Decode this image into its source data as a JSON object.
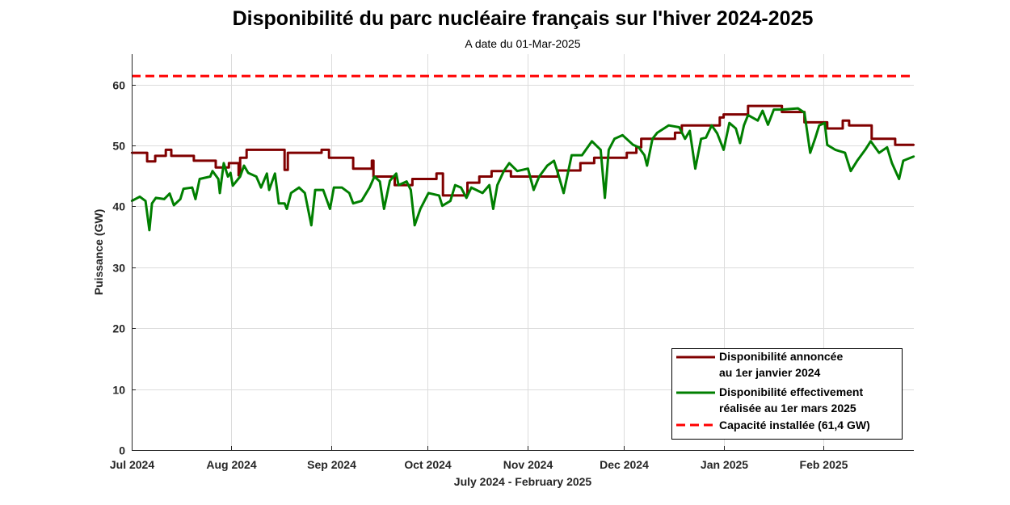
{
  "chart_data": {
    "type": "line",
    "title": "Disponibilité du parc nucléaire français sur l'hiver 2024-2025",
    "subtitle": "A date du 01-Mar-2025",
    "xlabel": "July 2024 - February 2025",
    "ylabel": "Puissance (GW)",
    "x_unit": "days since 01-Jul-2024",
    "xlim": [
      0,
      243
    ],
    "ylim": [
      0,
      65
    ],
    "grid": true,
    "legend_position": "bottom-right",
    "x_ticks": [
      {
        "day": 0,
        "label": "Jul 2024"
      },
      {
        "day": 31,
        "label": "Aug 2024"
      },
      {
        "day": 62,
        "label": "Sep 2024"
      },
      {
        "day": 92,
        "label": "Oct 2024"
      },
      {
        "day": 123,
        "label": "Nov 2024"
      },
      {
        "day": 153,
        "label": "Dec 2024"
      },
      {
        "day": 184,
        "label": "Jan 2025"
      },
      {
        "day": 215,
        "label": "Feb 2025"
      }
    ],
    "y_ticks": [
      0,
      10,
      20,
      30,
      40,
      50,
      60
    ],
    "series": [
      {
        "name": "announced",
        "legend": [
          "Disponibilité annoncée",
          "au 1er janvier 2024"
        ],
        "color": "#800000",
        "style": "step",
        "points": [
          [
            0,
            48.8
          ],
          [
            4.8,
            47.4
          ],
          [
            7.3,
            48.3
          ],
          [
            10.6,
            49.3
          ],
          [
            12.3,
            48.3
          ],
          [
            19.3,
            47.5
          ],
          [
            26.1,
            46.4
          ],
          [
            30.2,
            47.1
          ],
          [
            33.2,
            45.1
          ],
          [
            33.7,
            48.0
          ],
          [
            35.7,
            49.3
          ],
          [
            47.5,
            46.0
          ],
          [
            48.5,
            48.8
          ],
          [
            59.0,
            49.3
          ],
          [
            61.3,
            48.0
          ],
          [
            68.8,
            46.2
          ],
          [
            74.6,
            47.5
          ],
          [
            75.1,
            44.9
          ],
          [
            81.7,
            43.5
          ],
          [
            87.2,
            44.5
          ],
          [
            94.7,
            45.4
          ],
          [
            96.7,
            41.8
          ],
          [
            104.3,
            43.9
          ],
          [
            108.0,
            44.9
          ],
          [
            111.8,
            45.8
          ],
          [
            117.8,
            44.9
          ],
          [
            132.4,
            45.9
          ],
          [
            139.4,
            47.1
          ],
          [
            143.7,
            48.0
          ],
          [
            153.8,
            48.8
          ],
          [
            156.8,
            49.7
          ],
          [
            158.3,
            51.1
          ],
          [
            168.8,
            52.1
          ],
          [
            170.9,
            53.3
          ],
          [
            182.7,
            54.6
          ],
          [
            183.9,
            55.1
          ],
          [
            191.5,
            56.5
          ],
          [
            202.0,
            55.5
          ],
          [
            209.0,
            53.8
          ],
          [
            216.1,
            52.8
          ],
          [
            220.9,
            54.1
          ],
          [
            222.9,
            53.3
          ],
          [
            229.9,
            51.1
          ],
          [
            237.2,
            50.1
          ],
          [
            243,
            50.1
          ]
        ]
      },
      {
        "name": "realised",
        "legend": [
          "Disponibilité effectivement",
          "réalisée au 1er mars 2025"
        ],
        "color": "#007f00",
        "style": "line",
        "points": [
          [
            0,
            40.9
          ],
          [
            2.5,
            41.6
          ],
          [
            4.3,
            40.9
          ],
          [
            5.5,
            36.1
          ],
          [
            6.3,
            40.5
          ],
          [
            7.5,
            41.4
          ],
          [
            10.1,
            41.2
          ],
          [
            11.8,
            42.1
          ],
          [
            13.1,
            40.2
          ],
          [
            15.1,
            41.2
          ],
          [
            16.1,
            42.9
          ],
          [
            18.8,
            43.1
          ],
          [
            19.8,
            41.2
          ],
          [
            21.1,
            44.5
          ],
          [
            24.4,
            44.9
          ],
          [
            25.1,
            45.8
          ],
          [
            26.9,
            44.5
          ],
          [
            27.4,
            42.2
          ],
          [
            28.6,
            47.1
          ],
          [
            29.9,
            44.9
          ],
          [
            30.7,
            45.5
          ],
          [
            31.4,
            43.4
          ],
          [
            33.7,
            44.9
          ],
          [
            34.9,
            46.7
          ],
          [
            36.2,
            45.5
          ],
          [
            38.7,
            44.9
          ],
          [
            40.2,
            43.1
          ],
          [
            42.0,
            45.4
          ],
          [
            42.7,
            42.7
          ],
          [
            44.5,
            45.4
          ],
          [
            45.7,
            40.5
          ],
          [
            47.5,
            40.5
          ],
          [
            48.2,
            39.6
          ],
          [
            49.5,
            42.2
          ],
          [
            52.0,
            43.1
          ],
          [
            53.8,
            42.2
          ],
          [
            55.8,
            36.9
          ],
          [
            57.0,
            42.7
          ],
          [
            59.5,
            42.7
          ],
          [
            61.6,
            39.6
          ],
          [
            62.8,
            43.1
          ],
          [
            65.3,
            43.1
          ],
          [
            67.6,
            42.2
          ],
          [
            68.8,
            40.5
          ],
          [
            71.4,
            40.9
          ],
          [
            73.9,
            43.1
          ],
          [
            75.4,
            44.9
          ],
          [
            77.1,
            44.1
          ],
          [
            78.4,
            39.6
          ],
          [
            80.2,
            44.2
          ],
          [
            82.2,
            45.4
          ],
          [
            82.9,
            43.5
          ],
          [
            85.4,
            44.1
          ],
          [
            86.7,
            42.7
          ],
          [
            87.9,
            36.9
          ],
          [
            89.7,
            39.6
          ],
          [
            92.2,
            42.2
          ],
          [
            95.5,
            41.8
          ],
          [
            96.5,
            40.1
          ],
          [
            99.0,
            40.9
          ],
          [
            100.5,
            43.5
          ],
          [
            102.3,
            43.1
          ],
          [
            104.0,
            41.4
          ],
          [
            105.5,
            43.1
          ],
          [
            109.0,
            42.2
          ],
          [
            111.1,
            43.5
          ],
          [
            112.3,
            39.6
          ],
          [
            113.6,
            43.5
          ],
          [
            115.6,
            45.8
          ],
          [
            117.3,
            47.1
          ],
          [
            119.8,
            45.8
          ],
          [
            123.1,
            46.2
          ],
          [
            124.9,
            42.7
          ],
          [
            126.6,
            44.9
          ],
          [
            129.1,
            46.7
          ],
          [
            131.2,
            47.5
          ],
          [
            132.4,
            45.5
          ],
          [
            134.2,
            42.2
          ],
          [
            136.7,
            48.4
          ],
          [
            139.9,
            48.4
          ],
          [
            143.0,
            50.7
          ],
          [
            145.7,
            49.3
          ],
          [
            147.0,
            41.4
          ],
          [
            148.2,
            49.3
          ],
          [
            150.0,
            51.1
          ],
          [
            152.5,
            51.7
          ],
          [
            155.8,
            50.1
          ],
          [
            157.5,
            49.7
          ],
          [
            159.3,
            48.4
          ],
          [
            160.1,
            46.7
          ],
          [
            161.8,
            51.1
          ],
          [
            163.3,
            52.1
          ],
          [
            166.8,
            53.3
          ],
          [
            170.1,
            53.0
          ],
          [
            171.9,
            51.1
          ],
          [
            173.4,
            52.4
          ],
          [
            175.1,
            46.2
          ],
          [
            176.9,
            51.1
          ],
          [
            178.4,
            51.3
          ],
          [
            180.2,
            53.3
          ],
          [
            181.9,
            52.0
          ],
          [
            183.9,
            49.3
          ],
          [
            185.7,
            53.7
          ],
          [
            187.7,
            52.8
          ],
          [
            189.0,
            50.4
          ],
          [
            190.2,
            53.3
          ],
          [
            191.5,
            55.0
          ],
          [
            194.5,
            54.1
          ],
          [
            196.0,
            55.7
          ],
          [
            197.7,
            53.4
          ],
          [
            199.5,
            55.9
          ],
          [
            202.0,
            55.9
          ],
          [
            207.0,
            56.1
          ],
          [
            209.0,
            55.4
          ],
          [
            210.8,
            48.8
          ],
          [
            212.3,
            51.1
          ],
          [
            213.6,
            53.3
          ],
          [
            215.3,
            53.7
          ],
          [
            216.1,
            50.1
          ],
          [
            218.6,
            49.3
          ],
          [
            221.6,
            48.8
          ],
          [
            223.4,
            45.8
          ],
          [
            225.4,
            47.5
          ],
          [
            227.9,
            49.3
          ],
          [
            229.6,
            50.7
          ],
          [
            232.2,
            48.8
          ],
          [
            234.7,
            49.7
          ],
          [
            236.2,
            47.1
          ],
          [
            238.4,
            44.5
          ],
          [
            239.7,
            47.5
          ],
          [
            243,
            48.2
          ]
        ]
      },
      {
        "name": "installed",
        "legend": [
          "Capacité installée (61,4 GW)"
        ],
        "color": "#ff0000",
        "style": "dashed",
        "value": 61.4
      }
    ]
  }
}
